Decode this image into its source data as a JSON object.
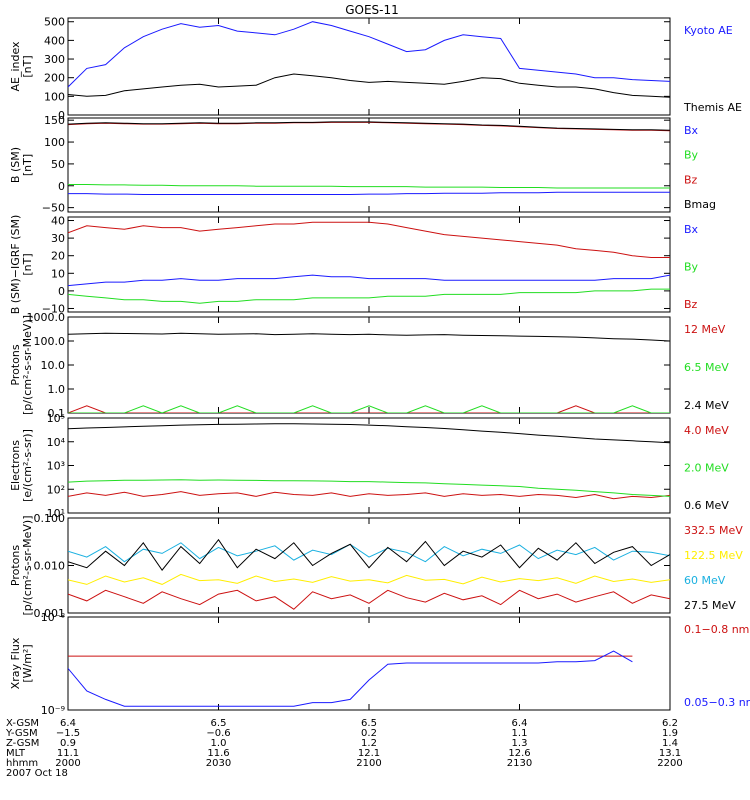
{
  "title": "GOES-11",
  "colors": {
    "blue": "#1a1aff",
    "green": "#22dd22",
    "red": "#cc1111",
    "black": "#000000",
    "cyan": "#1ab0e0",
    "yellow": "#ffee00"
  },
  "chart_data": [
    {
      "type": "line",
      "ylabel": [
        "AE_index",
        "[nT]"
      ],
      "scale": "linear",
      "ylim": [
        0,
        520
      ],
      "ticks": [
        {
          "v": 500,
          "label": "500"
        },
        {
          "v": 400,
          "label": "400"
        },
        {
          "v": 300,
          "label": "300"
        },
        {
          "v": 200,
          "label": "200"
        },
        {
          "v": 100,
          "label": "100"
        },
        {
          "v": 0,
          "label": "0"
        }
      ],
      "series": [
        {
          "name": "Kyoto AE",
          "color": "blue",
          "values": [
            150,
            250,
            270,
            360,
            420,
            460,
            490,
            470,
            480,
            450,
            440,
            430,
            460,
            500,
            480,
            450,
            420,
            380,
            340,
            350,
            400,
            430,
            420,
            410,
            250,
            240,
            230,
            220,
            200,
            200,
            190,
            185,
            180
          ]
        },
        {
          "name": "Themis AE",
          "color": "black",
          "values": [
            110,
            100,
            105,
            130,
            140,
            150,
            160,
            165,
            150,
            155,
            160,
            200,
            220,
            210,
            200,
            185,
            175,
            180,
            175,
            170,
            165,
            180,
            200,
            195,
            170,
            160,
            150,
            150,
            140,
            120,
            105,
            100,
            95
          ]
        }
      ]
    },
    {
      "type": "line",
      "ylabel": [
        "B (SM)",
        "[nT]"
      ],
      "scale": "linear",
      "ylim": [
        -60,
        155
      ],
      "ticks": [
        {
          "v": 150,
          "label": "150"
        },
        {
          "v": 100,
          "label": "100"
        },
        {
          "v": 50,
          "label": "50"
        },
        {
          "v": 0,
          "label": "0"
        },
        {
          "v": -50,
          "label": "−50"
        }
      ],
      "series": [
        {
          "name": "Bx",
          "color": "blue",
          "values": [
            -18,
            -18,
            -19,
            -19,
            -20,
            -20,
            -20,
            -20,
            -20,
            -20,
            -20,
            -20,
            -20,
            -20,
            -20,
            -20,
            -19,
            -19,
            -18,
            -18,
            -17,
            -17,
            -17,
            -16,
            -16,
            -16,
            -15,
            -15,
            -15,
            -15,
            -15,
            -15,
            -15
          ]
        },
        {
          "name": "By",
          "color": "green",
          "values": [
            3,
            3,
            2,
            2,
            1,
            1,
            0,
            0,
            0,
            0,
            -1,
            -1,
            -1,
            -1,
            -1,
            -2,
            -2,
            -2,
            -2,
            -3,
            -3,
            -3,
            -3,
            -4,
            -4,
            -4,
            -5,
            -5,
            -5,
            -5,
            -5,
            -5,
            -5
          ]
        },
        {
          "name": "Bz",
          "color": "red",
          "values": [
            140,
            142,
            143,
            142,
            141,
            141,
            142,
            143,
            142,
            142,
            143,
            143,
            144,
            144,
            145,
            145,
            145,
            144,
            143,
            142,
            141,
            140,
            138,
            137,
            135,
            133,
            131,
            130,
            129,
            128,
            127,
            127,
            126
          ]
        },
        {
          "name": "Bmag",
          "color": "black",
          "values": [
            141,
            143,
            144,
            143,
            142,
            142,
            143,
            144,
            143,
            143,
            144,
            144,
            145,
            145,
            146,
            146,
            146,
            145,
            144,
            143,
            142,
            141,
            139,
            138,
            136,
            134,
            132,
            131,
            130,
            129,
            128,
            128,
            127
          ]
        }
      ]
    },
    {
      "type": "line",
      "ylabel": [
        "B (SM)−IGRF (SM)",
        "[nT]"
      ],
      "scale": "linear",
      "ylim": [
        -12,
        42
      ],
      "ticks": [
        {
          "v": 40,
          "label": "40"
        },
        {
          "v": 30,
          "label": "30"
        },
        {
          "v": 20,
          "label": "20"
        },
        {
          "v": 10,
          "label": "10"
        },
        {
          "v": 0,
          "label": "0"
        },
        {
          "v": -10,
          "label": "−10"
        }
      ],
      "series": [
        {
          "name": "Bx",
          "color": "blue",
          "values": [
            3,
            4,
            5,
            5,
            6,
            6,
            7,
            6,
            6,
            7,
            7,
            7,
            8,
            9,
            8,
            8,
            7,
            7,
            7,
            7,
            6,
            6,
            6,
            6,
            6,
            6,
            6,
            6,
            6,
            7,
            7,
            7,
            9
          ]
        },
        {
          "name": "By",
          "color": "green",
          "values": [
            -2,
            -3,
            -4,
            -5,
            -5,
            -6,
            -6,
            -7,
            -6,
            -6,
            -5,
            -5,
            -5,
            -4,
            -4,
            -4,
            -4,
            -3,
            -3,
            -3,
            -2,
            -2,
            -2,
            -2,
            -1,
            -1,
            -1,
            -1,
            0,
            0,
            0,
            1,
            1
          ]
        },
        {
          "name": "Bz",
          "color": "red",
          "values": [
            33,
            37,
            36,
            35,
            37,
            36,
            36,
            34,
            35,
            36,
            37,
            38,
            38,
            39,
            39,
            39,
            39,
            38,
            36,
            34,
            32,
            31,
            30,
            29,
            28,
            27,
            26,
            24,
            23,
            22,
            20,
            19,
            19
          ]
        }
      ]
    },
    {
      "type": "line",
      "ylabel": [
        "Protons",
        "[p/(cm²-s-sr-MeV)]"
      ],
      "scale": "log",
      "ylim": [
        0.1,
        1000
      ],
      "ticks": [
        {
          "v": 1000,
          "label": "1000.0"
        },
        {
          "v": 100,
          "label": "100.0"
        },
        {
          "v": 10,
          "label": "10.0"
        },
        {
          "v": 1,
          "label": "1.0"
        },
        {
          "v": 0.1,
          "label": "0.1"
        }
      ],
      "series": [
        {
          "name": "12 MeV",
          "color": "red",
          "values": [
            0.1,
            0.2,
            0.1,
            0.1,
            0.1,
            0.1,
            0.1,
            0.1,
            0.1,
            0.1,
            0.1,
            0.1,
            0.1,
            0.1,
            0.1,
            0.1,
            0.1,
            0.1,
            0.1,
            0.1,
            0.1,
            0.1,
            0.1,
            0.1,
            0.1,
            0.1,
            0.1,
            0.2,
            0.1,
            0.1,
            0.1,
            0.1,
            0.1
          ]
        },
        {
          "name": "6.5 MeV",
          "color": "green",
          "values": [
            0.1,
            0.1,
            0.1,
            0.1,
            0.2,
            0.1,
            0.2,
            0.1,
            0.1,
            0.2,
            0.1,
            0.1,
            0.1,
            0.2,
            0.1,
            0.1,
            0.2,
            0.1,
            0.1,
            0.2,
            0.1,
            0.1,
            0.2,
            0.1,
            0.1,
            0.1,
            0.1,
            0.1,
            0.1,
            0.1,
            0.2,
            0.1,
            0.1
          ]
        },
        {
          "name": "2.4 MeV",
          "color": "black",
          "values": [
            190,
            200,
            210,
            205,
            200,
            195,
            210,
            200,
            190,
            195,
            200,
            185,
            190,
            200,
            190,
            185,
            190,
            180,
            175,
            180,
            185,
            175,
            170,
            165,
            160,
            155,
            150,
            145,
            135,
            125,
            120,
            110,
            100
          ]
        }
      ]
    },
    {
      "type": "line",
      "ylabel": [
        "Electrons",
        "[e/(cm²-s-sr)]"
      ],
      "scale": "log",
      "ylim": [
        10,
        100000
      ],
      "ticks": [
        {
          "v": 100000,
          "label": "10⁵"
        },
        {
          "v": 10000,
          "label": "10⁴"
        },
        {
          "v": 1000,
          "label": "10³"
        },
        {
          "v": 100,
          "label": "10²"
        },
        {
          "v": 10,
          "label": "10¹"
        }
      ],
      "series": [
        {
          "name": "4.0 MeV",
          "color": "red",
          "values": [
            50,
            70,
            55,
            75,
            50,
            60,
            80,
            55,
            65,
            70,
            50,
            75,
            60,
            55,
            70,
            50,
            65,
            55,
            60,
            70,
            50,
            65,
            55,
            60,
            50,
            60,
            55,
            45,
            60,
            40,
            50,
            45,
            55
          ]
        },
        {
          "name": "2.0 MeV",
          "color": "green",
          "values": [
            200,
            220,
            230,
            240,
            240,
            245,
            250,
            240,
            245,
            240,
            235,
            230,
            230,
            225,
            220,
            210,
            210,
            200,
            190,
            185,
            170,
            160,
            150,
            140,
            130,
            110,
            100,
            90,
            80,
            70,
            60,
            55,
            50
          ]
        },
        {
          "name": "0.6 MeV",
          "color": "black",
          "values": [
            35000,
            38000,
            40000,
            42000,
            45000,
            47000,
            50000,
            52000,
            54000,
            55000,
            56000,
            57000,
            57000,
            56000,
            55000,
            53000,
            50000,
            47000,
            43000,
            40000,
            36000,
            32000,
            28000,
            25000,
            22000,
            19000,
            17000,
            15000,
            13000,
            12000,
            11000,
            10000,
            9000
          ]
        }
      ]
    },
    {
      "type": "line",
      "ylabel": [
        "Protons",
        "[p/(cm²-s-sr-MeV)]"
      ],
      "scale": "log",
      "ylim": [
        0.001,
        0.1
      ],
      "ticks": [
        {
          "v": 0.1,
          "label": "0.100"
        },
        {
          "v": 0.01,
          "label": "0.010"
        },
        {
          "v": 0.001,
          "label": "0.001"
        }
      ],
      "series": [
        {
          "name": "332.5 MeV",
          "color": "red",
          "values": [
            0.0025,
            0.0018,
            0.003,
            0.0022,
            0.0016,
            0.0028,
            0.002,
            0.0015,
            0.0025,
            0.003,
            0.0018,
            0.0022,
            0.0012,
            0.0028,
            0.002,
            0.0024,
            0.0016,
            0.003,
            0.0021,
            0.0017,
            0.0026,
            0.0019,
            0.0023,
            0.0015,
            0.003,
            0.002,
            0.0025,
            0.0017,
            0.0022,
            0.0028,
            0.0016,
            0.0024,
            0.002
          ]
        },
        {
          "name": "122.5 MeV",
          "color": "yellow",
          "values": [
            0.005,
            0.004,
            0.006,
            0.0045,
            0.0055,
            0.004,
            0.0065,
            0.0048,
            0.005,
            0.0042,
            0.006,
            0.0046,
            0.0052,
            0.0044,
            0.0058,
            0.0047,
            0.005,
            0.0043,
            0.0062,
            0.0049,
            0.0051,
            0.0041,
            0.0057,
            0.0045,
            0.0053,
            0.0048,
            0.0055,
            0.0042,
            0.006,
            0.0046,
            0.0052,
            0.0044,
            0.005
          ]
        },
        {
          "name": "60 MeV",
          "color": "cyan",
          "values": [
            0.02,
            0.015,
            0.025,
            0.012,
            0.022,
            0.018,
            0.03,
            0.014,
            0.024,
            0.016,
            0.02,
            0.026,
            0.013,
            0.021,
            0.017,
            0.028,
            0.015,
            0.023,
            0.019,
            0.012,
            0.025,
            0.016,
            0.022,
            0.018,
            0.027,
            0.014,
            0.021,
            0.017,
            0.024,
            0.013,
            0.02,
            0.019,
            0.016
          ]
        },
        {
          "name": "27.5 MeV",
          "color": "black",
          "values": [
            0.012,
            0.009,
            0.02,
            0.01,
            0.03,
            0.008,
            0.025,
            0.011,
            0.035,
            0.009,
            0.022,
            0.014,
            0.03,
            0.01,
            0.018,
            0.028,
            0.009,
            0.024,
            0.012,
            0.032,
            0.01,
            0.02,
            0.015,
            0.027,
            0.009,
            0.023,
            0.013,
            0.03,
            0.011,
            0.019,
            0.025,
            0.01,
            0.017
          ]
        }
      ]
    },
    {
      "type": "line",
      "ylabel": [
        "Xray Flux",
        "[W/m²]"
      ],
      "scale": "log",
      "ylim": [
        1e-09,
        1e-08
      ],
      "ticks": [
        {
          "v": 1e-08,
          "label": "10⁻⁸"
        },
        {
          "v": 1e-09,
          "label": "10⁻⁹"
        }
      ],
      "series": [
        {
          "name": "0.1−0.8 nm",
          "color": "red",
          "values": [
            3.8e-09,
            3.8e-09,
            3.8e-09,
            3.8e-09,
            3.8e-09,
            3.8e-09,
            3.8e-09,
            3.8e-09,
            3.8e-09,
            3.8e-09,
            3.8e-09,
            3.8e-09,
            3.8e-09,
            3.8e-09,
            3.8e-09,
            3.8e-09,
            3.8e-09,
            3.8e-09,
            3.8e-09,
            3.8e-09,
            3.8e-09,
            3.8e-09,
            3.8e-09,
            3.8e-09,
            3.8e-09,
            3.8e-09,
            3.8e-09,
            3.8e-09,
            3.8e-09,
            3.8e-09,
            3.8e-09,
            null,
            null
          ]
        },
        {
          "name": "0.05−0.3 nm",
          "color": "blue",
          "values": [
            2.8e-09,
            1.6e-09,
            1.3e-09,
            1.1e-09,
            1.1e-09,
            1.1e-09,
            1.1e-09,
            1.1e-09,
            1.1e-09,
            1.1e-09,
            1.1e-09,
            1.1e-09,
            1.1e-09,
            1.2e-09,
            1.2e-09,
            1.3e-09,
            2.1e-09,
            3.1e-09,
            3.2e-09,
            3.2e-09,
            3.2e-09,
            3.2e-09,
            3.2e-09,
            3.2e-09,
            3.2e-09,
            3.2e-09,
            3.3e-09,
            3.3e-09,
            3.4e-09,
            4.3e-09,
            3.3e-09,
            null,
            4.5e-09
          ]
        }
      ]
    }
  ],
  "x_axis": {
    "ticks": [
      {
        "X-GSM": "6.4",
        "Y-GSM": "−1.5",
        "Z-GSM": "0.9",
        "MLT": "11.1",
        "hhmm": "2000"
      },
      {
        "X-GSM": "6.5",
        "Y-GSM": "−0.6",
        "Z-GSM": "1.0",
        "MLT": "11.6",
        "hhmm": "2030"
      },
      {
        "X-GSM": "6.5",
        "Y-GSM": "0.2",
        "Z-GSM": "1.2",
        "MLT": "12.1",
        "hhmm": "2100"
      },
      {
        "X-GSM": "6.4",
        "Y-GSM": "1.1",
        "Z-GSM": "1.3",
        "MLT": "12.6",
        "hhmm": "2130"
      },
      {
        "X-GSM": "6.2",
        "Y-GSM": "1.9",
        "Z-GSM": "1.4",
        "MLT": "13.1",
        "hhmm": "2200"
      }
    ],
    "row_labels": [
      "X-GSM",
      "Y-GSM",
      "Z-GSM",
      "MLT",
      "hhmm"
    ],
    "date": "2007 Oct 18"
  }
}
